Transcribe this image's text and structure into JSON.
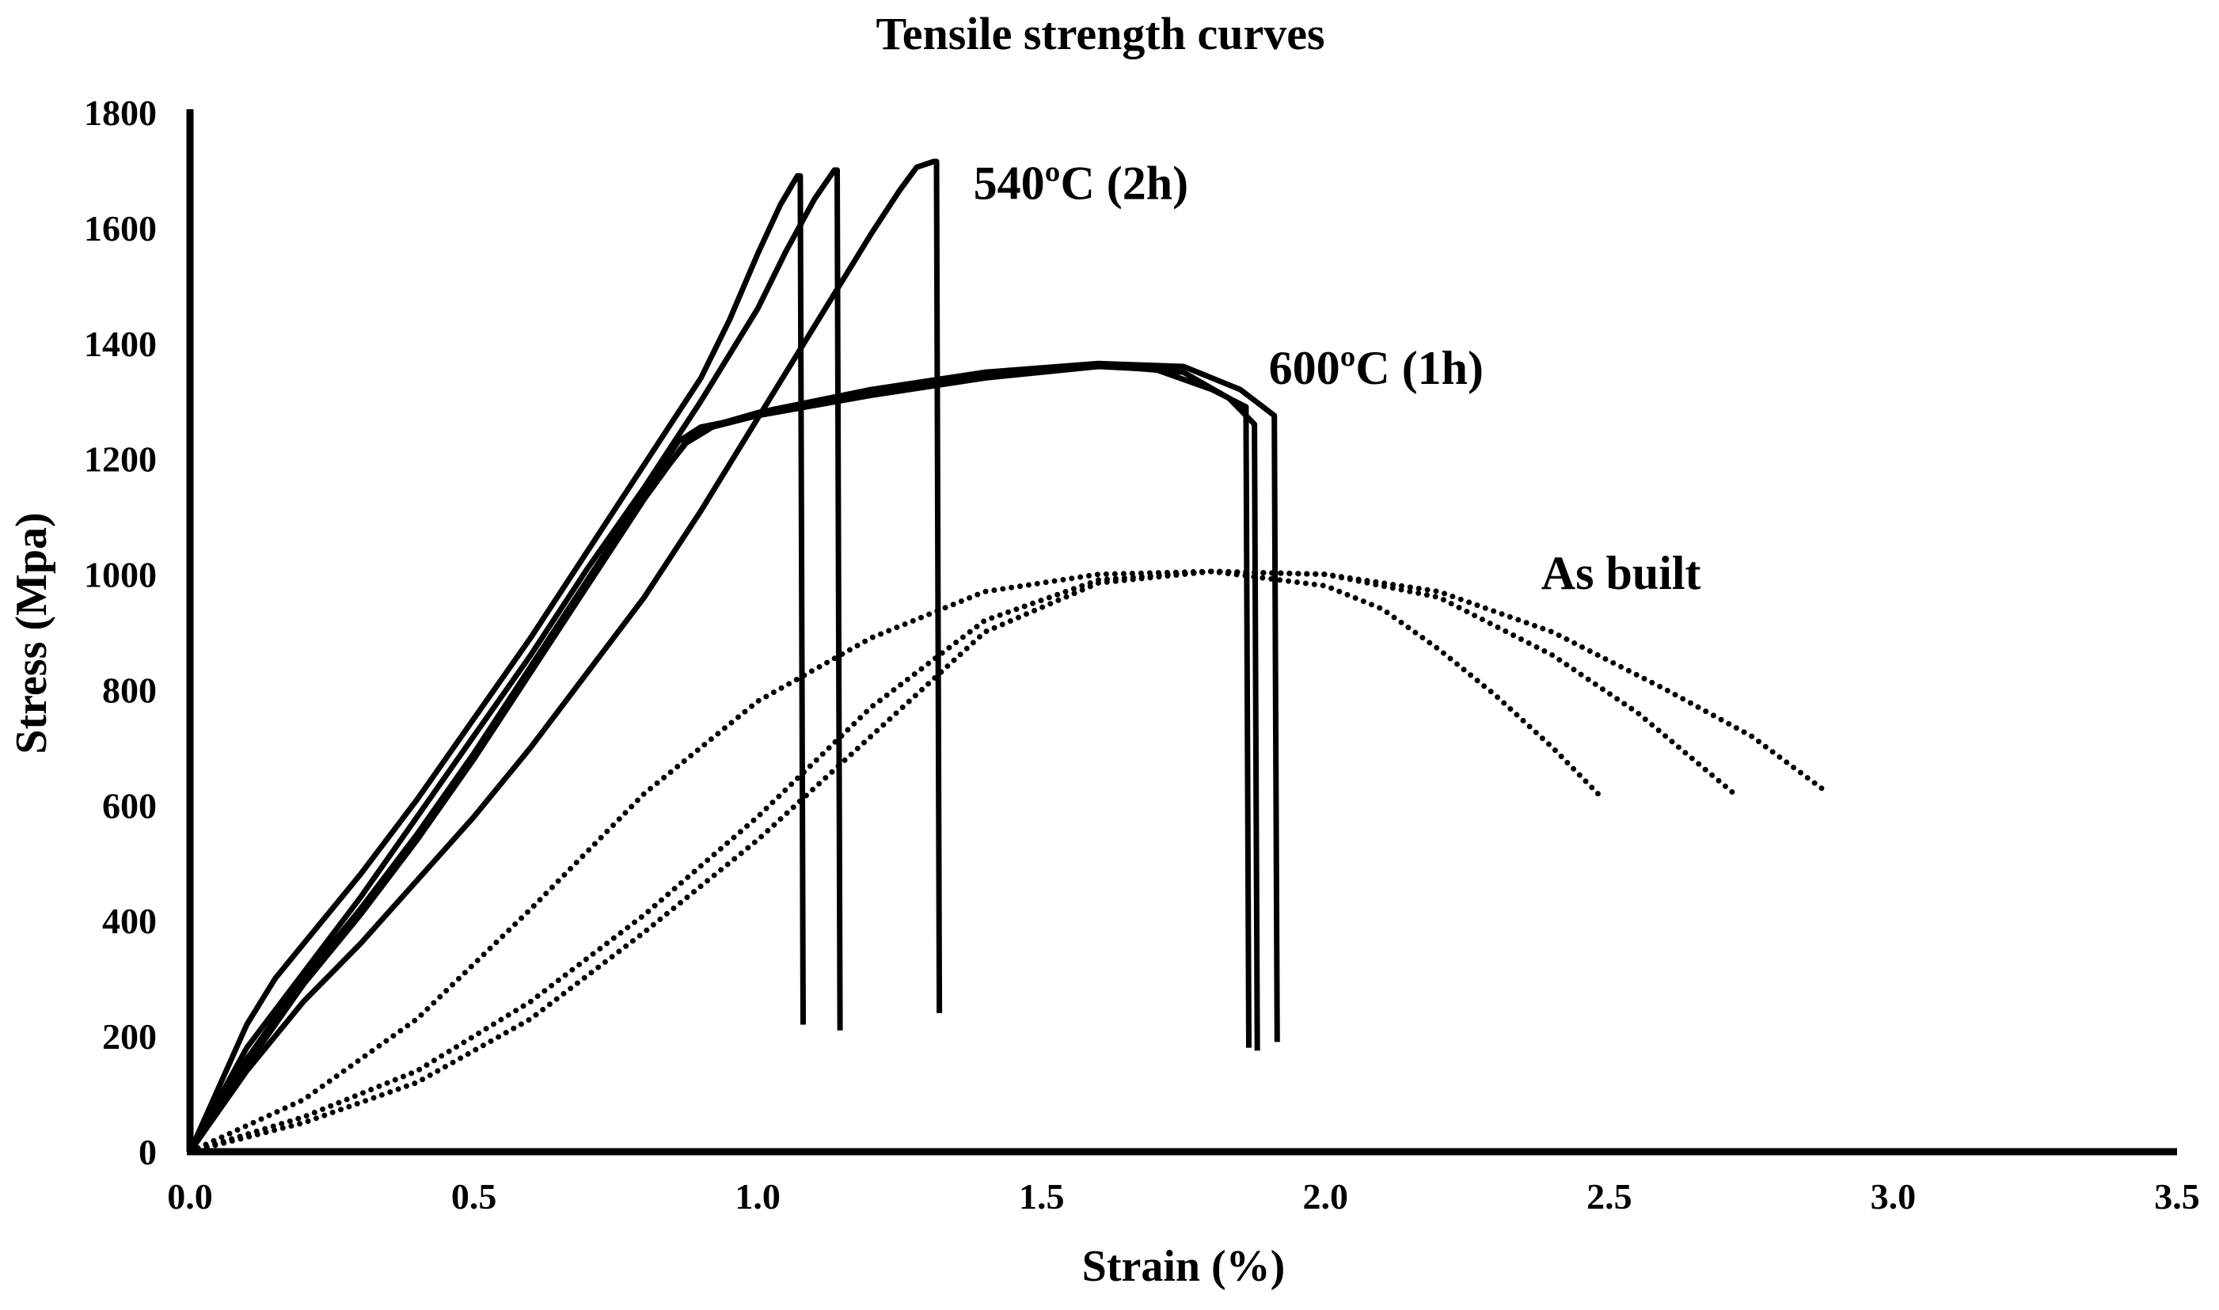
{
  "chart_data": {
    "type": "line",
    "title": "Tensile strength curves",
    "xlabel": "Strain  (%)",
    "ylabel": "Stress (Mpa)",
    "xlim": [
      0,
      3.5
    ],
    "ylim": [
      0,
      1800
    ],
    "x_ticks": [
      0,
      0.5,
      1.0,
      1.5,
      2.0,
      2.5,
      3.0,
      3.5
    ],
    "x_tick_labels": [
      "0.0",
      "0.5",
      "1.0",
      "1.5",
      "2.0",
      "2.5",
      "3.0",
      "3.5"
    ],
    "y_ticks": [
      0,
      200,
      400,
      600,
      800,
      1000,
      1200,
      1400,
      1600,
      1800
    ],
    "y_tick_labels": [
      "0",
      "200",
      "400",
      "600",
      "800",
      "1000",
      "1200",
      "1400",
      "1600",
      "1800"
    ],
    "grid": false,
    "annotations": [
      {
        "text": "540ºC (2h)",
        "x": 1.38,
        "y": 1650
      },
      {
        "text": "600ºC (1h)",
        "x": 1.9,
        "y": 1330
      },
      {
        "text": "As built",
        "x": 2.38,
        "y": 975
      }
    ],
    "series": [
      {
        "name": "540ºC (2h) #1",
        "group": "540",
        "style": "solid",
        "points": [
          [
            0,
            0
          ],
          [
            0.05,
            110
          ],
          [
            0.1,
            220
          ],
          [
            0.15,
            300
          ],
          [
            0.2,
            360
          ],
          [
            0.3,
            480
          ],
          [
            0.4,
            610
          ],
          [
            0.5,
            750
          ],
          [
            0.6,
            890
          ],
          [
            0.7,
            1040
          ],
          [
            0.8,
            1190
          ],
          [
            0.9,
            1340
          ],
          [
            0.95,
            1440
          ],
          [
            1.0,
            1555
          ],
          [
            1.04,
            1640
          ],
          [
            1.07,
            1690
          ],
          [
            1.075,
            1690
          ],
          [
            1.08,
            220
          ]
        ]
      },
      {
        "name": "540ºC (2h) #2",
        "group": "540",
        "style": "solid",
        "points": [
          [
            0,
            0
          ],
          [
            0.05,
            90
          ],
          [
            0.1,
            180
          ],
          [
            0.2,
            310
          ],
          [
            0.3,
            440
          ],
          [
            0.4,
            580
          ],
          [
            0.5,
            720
          ],
          [
            0.6,
            860
          ],
          [
            0.7,
            1010
          ],
          [
            0.8,
            1150
          ],
          [
            0.9,
            1300
          ],
          [
            1.0,
            1460
          ],
          [
            1.05,
            1560
          ],
          [
            1.1,
            1650
          ],
          [
            1.135,
            1700
          ],
          [
            1.14,
            1700
          ],
          [
            1.145,
            210
          ]
        ]
      },
      {
        "name": "540ºC (2h) #3",
        "group": "540",
        "style": "solid",
        "points": [
          [
            0,
            0
          ],
          [
            0.1,
            140
          ],
          [
            0.2,
            260
          ],
          [
            0.3,
            360
          ],
          [
            0.4,
            470
          ],
          [
            0.5,
            580
          ],
          [
            0.6,
            700
          ],
          [
            0.7,
            830
          ],
          [
            0.8,
            960
          ],
          [
            0.9,
            1110
          ],
          [
            1.0,
            1270
          ],
          [
            1.1,
            1430
          ],
          [
            1.2,
            1590
          ],
          [
            1.25,
            1665
          ],
          [
            1.28,
            1705
          ],
          [
            1.31,
            1715
          ],
          [
            1.315,
            1715
          ],
          [
            1.32,
            240
          ]
        ]
      },
      {
        "name": "600ºC (1h) #1",
        "group": "600",
        "style": "solid",
        "points": [
          [
            0,
            0
          ],
          [
            0.1,
            160
          ],
          [
            0.2,
            300
          ],
          [
            0.3,
            420
          ],
          [
            0.4,
            550
          ],
          [
            0.5,
            690
          ],
          [
            0.6,
            840
          ],
          [
            0.7,
            990
          ],
          [
            0.8,
            1140
          ],
          [
            0.86,
            1230
          ],
          [
            0.9,
            1255
          ],
          [
            1.0,
            1275
          ],
          [
            1.2,
            1310
          ],
          [
            1.4,
            1340
          ],
          [
            1.6,
            1360
          ],
          [
            1.7,
            1355
          ],
          [
            1.8,
            1320
          ],
          [
            1.86,
            1290
          ],
          [
            1.865,
            180
          ]
        ]
      },
      {
        "name": "600ºC (1h) #2",
        "group": "600",
        "style": "solid",
        "points": [
          [
            0,
            0
          ],
          [
            0.1,
            150
          ],
          [
            0.2,
            290
          ],
          [
            0.3,
            410
          ],
          [
            0.4,
            540
          ],
          [
            0.5,
            680
          ],
          [
            0.6,
            830
          ],
          [
            0.7,
            980
          ],
          [
            0.8,
            1130
          ],
          [
            0.87,
            1225
          ],
          [
            0.92,
            1255
          ],
          [
            1.0,
            1275
          ],
          [
            1.2,
            1315
          ],
          [
            1.4,
            1345
          ],
          [
            1.6,
            1362
          ],
          [
            1.75,
            1350
          ],
          [
            1.83,
            1305
          ],
          [
            1.875,
            1260
          ],
          [
            1.88,
            175
          ]
        ]
      },
      {
        "name": "600ºC (1h) #3",
        "group": "600",
        "style": "solid",
        "points": [
          [
            0,
            0
          ],
          [
            0.1,
            155
          ],
          [
            0.2,
            295
          ],
          [
            0.3,
            415
          ],
          [
            0.4,
            545
          ],
          [
            0.5,
            685
          ],
          [
            0.6,
            835
          ],
          [
            0.7,
            985
          ],
          [
            0.8,
            1135
          ],
          [
            0.88,
            1235
          ],
          [
            0.93,
            1260
          ],
          [
            1.0,
            1280
          ],
          [
            1.2,
            1320
          ],
          [
            1.4,
            1350
          ],
          [
            1.6,
            1365
          ],
          [
            1.75,
            1360
          ],
          [
            1.85,
            1320
          ],
          [
            1.91,
            1275
          ],
          [
            1.915,
            190
          ]
        ]
      },
      {
        "name": "As built #1",
        "group": "asbuilt",
        "style": "dotted",
        "points": [
          [
            0,
            0
          ],
          [
            0.2,
            90
          ],
          [
            0.4,
            230
          ],
          [
            0.6,
            420
          ],
          [
            0.8,
            620
          ],
          [
            1.0,
            780
          ],
          [
            1.2,
            890
          ],
          [
            1.4,
            970
          ],
          [
            1.6,
            1000
          ],
          [
            1.8,
            1005
          ],
          [
            2.0,
            980
          ],
          [
            2.1,
            940
          ],
          [
            2.2,
            870
          ],
          [
            2.3,
            790
          ],
          [
            2.4,
            700
          ],
          [
            2.48,
            620
          ]
        ]
      },
      {
        "name": "As built #2",
        "group": "asbuilt",
        "style": "dotted",
        "points": [
          [
            0,
            0
          ],
          [
            0.2,
            60
          ],
          [
            0.4,
            140
          ],
          [
            0.6,
            260
          ],
          [
            0.8,
            410
          ],
          [
            1.0,
            580
          ],
          [
            1.2,
            770
          ],
          [
            1.4,
            920
          ],
          [
            1.6,
            990
          ],
          [
            1.8,
            1005
          ],
          [
            2.0,
            1000
          ],
          [
            2.2,
            960
          ],
          [
            2.4,
            860
          ],
          [
            2.55,
            760
          ],
          [
            2.72,
            620
          ]
        ]
      },
      {
        "name": "As built #3",
        "group": "asbuilt",
        "style": "dotted",
        "points": [
          [
            0,
            0
          ],
          [
            0.2,
            50
          ],
          [
            0.4,
            120
          ],
          [
            0.6,
            230
          ],
          [
            0.8,
            380
          ],
          [
            1.0,
            540
          ],
          [
            1.2,
            720
          ],
          [
            1.4,
            900
          ],
          [
            1.6,
            985
          ],
          [
            1.8,
            1005
          ],
          [
            2.0,
            1000
          ],
          [
            2.2,
            970
          ],
          [
            2.4,
            900
          ],
          [
            2.6,
            800
          ],
          [
            2.75,
            720
          ],
          [
            2.88,
            625
          ]
        ]
      }
    ]
  }
}
